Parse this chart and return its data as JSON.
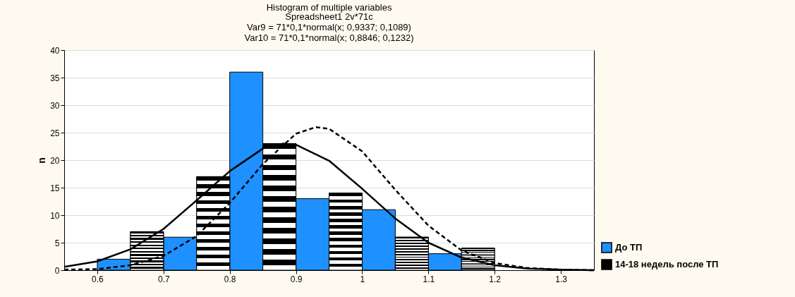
{
  "chart_data": {
    "type": "histogram",
    "title": "Histogram of multiple variables",
    "subtitle": "Spreadsheet1 2v*71c",
    "annotations": [
      "Var9 = 71*0,1*normal(x; 0,9337; 0,1089)",
      "Var10 = 71*0,1*normal(x; 0,8846; 0,1232)"
    ],
    "ylabel": "n",
    "bins": [
      0.6,
      0.7,
      0.8,
      0.9,
      1.0,
      1.1,
      1.2
    ],
    "series": [
      {
        "name": "До ТП",
        "color": "#1e90ff",
        "values": [
          2,
          6,
          36,
          13,
          11,
          3
        ]
      },
      {
        "name": "14-18 недель после ТП",
        "color": "#000000",
        "values": [
          7,
          17,
          23,
          14,
          6,
          4
        ]
      },
      {
        "type": "line",
        "color": "#000000",
        "line_style": "dashed",
        "x": [
          0.55,
          0.6,
          0.65,
          0.7,
          0.75,
          0.8,
          0.85,
          0.9,
          0.93,
          0.95,
          1.0,
          1.05,
          1.1,
          1.15,
          1.2,
          1.25,
          1.3,
          1.35
        ],
        "values": [
          0.1,
          0.2,
          0.9,
          2.6,
          6.2,
          12.2,
          19.3,
          24.8,
          26,
          25.7,
          21.6,
          14.6,
          8.1,
          3.6,
          1.3,
          0.4,
          0.1,
          0
        ]
      },
      {
        "type": "line",
        "color": "#000000",
        "line_style": "solid",
        "x": [
          0.55,
          0.6,
          0.65,
          0.7,
          0.75,
          0.8,
          0.85,
          0.88,
          0.9,
          0.95,
          1.0,
          1.05,
          1.1,
          1.15,
          1.2,
          1.25,
          1.3,
          1.35
        ],
        "values": [
          0.6,
          1.6,
          3.8,
          7.5,
          12.7,
          18,
          22.1,
          23,
          22.8,
          19.9,
          14.8,
          9.4,
          5,
          2.3,
          0.9,
          0.3,
          0.1,
          0
        ]
      }
    ],
    "xlim": [
      0.55,
      1.35
    ],
    "xticks": [
      0.6,
      0.7,
      0.8,
      0.9,
      1.0,
      1.1,
      1.2,
      1.3
    ],
    "ylim": [
      0,
      40
    ],
    "yticks": [
      0,
      5,
      10,
      15,
      20,
      25,
      30,
      35,
      40
    ],
    "grid": "y",
    "legend": "bottom right"
  }
}
